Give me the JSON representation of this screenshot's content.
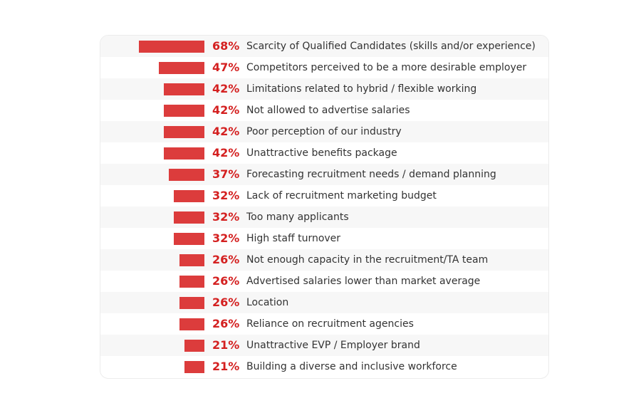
{
  "chart_data": {
    "type": "bar",
    "orientation": "horizontal",
    "value_unit": "%",
    "bar_color": "#dc3c3c",
    "label_color": "#d42020",
    "grid": false,
    "categories": [
      "Scarcity of Qualified Candidates (skills and/or experience)",
      "Competitors perceived to be a more desirable employer",
      "Limitations related to hybrid / flexible working",
      "Not allowed to advertise salaries",
      "Poor perception of our industry",
      "Unattractive benefits package",
      "Forecasting recruitment needs / demand planning",
      "Lack of recruitment marketing budget",
      "Too many applicants",
      "High staff turnover",
      "Not enough capacity in the recruitment/TA team",
      "Advertised salaries lower than market average",
      "Location",
      "Reliance on recruitment agencies",
      "Unattractive EVP / Employer brand",
      "Building a diverse and inclusive workforce"
    ],
    "values": [
      68,
      47,
      42,
      42,
      42,
      42,
      37,
      32,
      32,
      32,
      26,
      26,
      26,
      26,
      21,
      21
    ],
    "value_labels": [
      "68%",
      "47%",
      "42%",
      "42%",
      "42%",
      "42%",
      "37%",
      "32%",
      "32%",
      "32%",
      "26%",
      "26%",
      "26%",
      "26%",
      "21%",
      "21%"
    ]
  }
}
